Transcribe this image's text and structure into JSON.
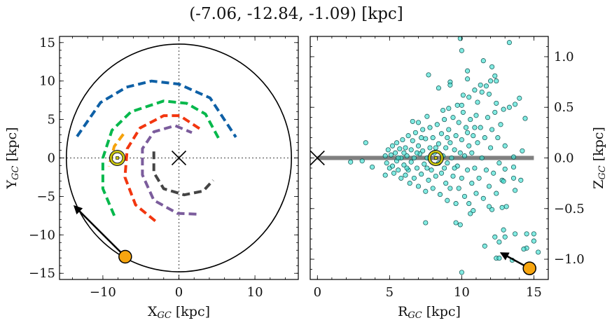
{
  "title": "(-7.06, -12.84, -1.09) [kpc]",
  "colors": {
    "arm_blue": "#0e60a6",
    "arm_green": "#06b84c",
    "arm_red": "#f2360f",
    "arm_purple": "#7b5c9c",
    "arm_gray": "#444444",
    "arm_orange": "#f5a20c",
    "object": "#f7a50f",
    "sun_ring": "#c9c400",
    "scatter_fill": "#3fe0d2",
    "scatter_edge": "#0b4a48",
    "plane_line": "#808080"
  },
  "chart_data": [
    {
      "type": "line",
      "panel": "left",
      "xlabel": {
        "main": "X",
        "sub": "GC",
        "unit": " [kpc]"
      },
      "ylabel": {
        "main": "Y",
        "sub": "GC",
        "unit": " [kpc]"
      },
      "xlim": [
        -15.7,
        15.7
      ],
      "ylim": [
        -15.8,
        15.8
      ],
      "xticks": [
        -10,
        0,
        10
      ],
      "xtick_labels": [
        "−10",
        "0",
        "10"
      ],
      "yticks": [
        15,
        10,
        5,
        0,
        -5,
        -10,
        -15
      ],
      "ytick_labels": [
        "15",
        "10",
        "5",
        "0",
        "−5",
        "−10",
        "−15"
      ],
      "reference_lines": {
        "x": 0,
        "y": 0,
        "style": "dotted"
      },
      "galactic_center": [
        0,
        0
      ],
      "sun": [
        -8.1,
        0
      ],
      "orbit_circle_radius": 14.8,
      "object_position": [
        -7.06,
        -12.84
      ],
      "object_arrow_to": [
        -13.7,
        -6.3
      ],
      "spiral_arms": [
        {
          "color_key": "arm_blue",
          "points": [
            [
              -13.4,
              2.8
            ],
            [
              -10.3,
              7.2
            ],
            [
              -6.9,
              9.2
            ],
            [
              -3.6,
              10.0
            ],
            [
              0,
              9.6
            ],
            [
              4.1,
              7.8
            ],
            [
              7.5,
              2.7
            ]
          ]
        },
        {
          "color_key": "arm_green",
          "points": [
            [
              -8.5,
              -7.5
            ],
            [
              -10.0,
              -4.0
            ],
            [
              -10.0,
              0
            ],
            [
              -8.8,
              3.6
            ],
            [
              -6.3,
              6.0
            ],
            [
              -2.0,
              7.4
            ],
            [
              1.0,
              7.1
            ],
            [
              3.5,
              5.7
            ],
            [
              5.3,
              2.4
            ]
          ]
        },
        {
          "color_key": "arm_red",
          "points": [
            [
              -3.1,
              -8.2
            ],
            [
              -5.7,
              -6.1
            ],
            [
              -7.1,
              -2.5
            ],
            [
              -6.8,
              1.2
            ],
            [
              -5.1,
              3.9
            ],
            [
              -2.0,
              5.5
            ],
            [
              0.1,
              5.5
            ],
            [
              2.9,
              3.7
            ]
          ]
        },
        {
          "color_key": "arm_purple",
          "points": [
            [
              2.3,
              -7.3
            ],
            [
              -0.2,
              -7.2
            ],
            [
              -3.3,
              -5.5
            ],
            [
              -4.8,
              -2.2
            ],
            [
              -4.8,
              1.2
            ],
            [
              -3.3,
              3.4
            ],
            [
              -0.5,
              4.2
            ],
            [
              1.7,
              3.3
            ]
          ]
        },
        {
          "color_key": "arm_gray",
          "points": [
            [
              -3.3,
              0.85
            ],
            [
              -3.3,
              -1.9
            ],
            [
              -2.0,
              -4.0
            ],
            [
              0.7,
              -4.8
            ],
            [
              3.2,
              -4.3
            ],
            [
              4.5,
              -2.9
            ]
          ]
        },
        {
          "color_key": "arm_orange",
          "points": [
            [
              -7.3,
              3.1
            ],
            [
              -8.5,
              1.5
            ],
            [
              -9.2,
              -1.1
            ]
          ]
        }
      ]
    },
    {
      "type": "scatter",
      "panel": "right",
      "xlabel": {
        "main": "R",
        "sub": "GC",
        "unit": " [kpc]"
      },
      "ylabel": {
        "main": "Z",
        "sub": "GC",
        "unit": " [kpc]"
      },
      "xlim": [
        -0.5,
        16.0
      ],
      "ylim": [
        -1.2,
        1.2
      ],
      "xticks": [
        0,
        5,
        10,
        15
      ],
      "xtick_labels": [
        "0",
        "5",
        "10",
        "15"
      ],
      "yticks": [
        1.0,
        0.5,
        0.0,
        -0.5,
        -1.0
      ],
      "ytick_labels": [
        "1.0",
        "0.5",
        "0.0",
        "−0.5",
        "−1.0"
      ],
      "ylabel_position": "right",
      "galactic_center": [
        0,
        0
      ],
      "sun": [
        8.2,
        0
      ],
      "plane_line": {
        "from": 0,
        "to": 15,
        "z": 0
      },
      "object_position": [
        14.7,
        -1.09
      ],
      "object_arrow_to": [
        12.75,
        -0.94
      ],
      "points": [
        [
          4.7,
          0.02
        ],
        [
          4.8,
          -0.05
        ],
        [
          4.9,
          0.08
        ],
        [
          5.0,
          -0.1
        ],
        [
          5.1,
          0.03
        ],
        [
          5.2,
          0.12
        ],
        [
          5.2,
          -0.08
        ],
        [
          5.3,
          -0.15
        ],
        [
          5.4,
          0.05
        ],
        [
          5.5,
          0.15
        ],
        [
          5.5,
          -0.03
        ],
        [
          5.6,
          -0.12
        ],
        [
          5.7,
          0.09
        ],
        [
          5.8,
          -0.2
        ],
        [
          5.8,
          0.0
        ],
        [
          5.9,
          0.18
        ],
        [
          6.0,
          -0.07
        ],
        [
          6.1,
          0.1
        ],
        [
          6.1,
          -0.17
        ],
        [
          6.2,
          0.02
        ],
        [
          6.3,
          0.22
        ],
        [
          6.3,
          -0.12
        ],
        [
          6.4,
          -0.25
        ],
        [
          6.5,
          0.08
        ],
        [
          6.5,
          -0.04
        ],
        [
          6.6,
          0.17
        ],
        [
          6.7,
          -0.2
        ],
        [
          6.7,
          0.0
        ],
        [
          6.8,
          0.25
        ],
        [
          6.9,
          -0.1
        ],
        [
          7.0,
          0.12
        ],
        [
          7.0,
          -0.28
        ],
        [
          7.1,
          0.04
        ],
        [
          7.2,
          -0.16
        ],
        [
          7.3,
          0.28
        ],
        [
          7.3,
          0.07
        ],
        [
          7.4,
          -0.06
        ],
        [
          7.5,
          -0.33
        ],
        [
          7.5,
          0.19
        ],
        [
          7.6,
          0.0
        ],
        [
          7.7,
          -0.22
        ],
        [
          7.8,
          0.3
        ],
        [
          7.8,
          0.1
        ],
        [
          7.9,
          -0.12
        ],
        [
          8.0,
          -0.3
        ],
        [
          8.0,
          0.2
        ],
        [
          8.1,
          0.05
        ],
        [
          8.2,
          -0.18
        ],
        [
          8.3,
          0.33
        ],
        [
          8.4,
          -0.05
        ],
        [
          8.4,
          0.14
        ],
        [
          8.5,
          -0.36
        ],
        [
          8.6,
          0.24
        ],
        [
          8.6,
          -0.15
        ],
        [
          8.7,
          0.02
        ],
        [
          8.8,
          0.38
        ],
        [
          8.9,
          -0.25
        ],
        [
          8.9,
          0.1
        ],
        [
          9.0,
          -0.42
        ],
        [
          9.0,
          -0.05
        ],
        [
          9.1,
          0.28
        ],
        [
          9.2,
          0.15
        ],
        [
          9.2,
          -0.3
        ],
        [
          9.3,
          0.0
        ],
        [
          9.4,
          0.4
        ],
        [
          9.4,
          -0.18
        ],
        [
          9.5,
          0.08
        ],
        [
          9.6,
          -0.45
        ],
        [
          9.6,
          0.22
        ],
        [
          9.7,
          -0.08
        ],
        [
          9.8,
          0.35
        ],
        [
          9.8,
          -0.3
        ],
        [
          9.9,
          0.05
        ],
        [
          10.0,
          -0.2
        ],
        [
          10.0,
          0.18
        ],
        [
          10.1,
          0.45
        ],
        [
          10.2,
          -0.38
        ],
        [
          10.2,
          0.02
        ],
        [
          10.3,
          0.3
        ],
        [
          10.4,
          -0.12
        ],
        [
          10.5,
          0.12
        ],
        [
          10.5,
          -0.45
        ],
        [
          10.6,
          0.38
        ],
        [
          10.7,
          -0.25
        ],
        [
          10.7,
          0.05
        ],
        [
          10.8,
          0.22
        ],
        [
          10.9,
          -0.1
        ],
        [
          11.0,
          0.42
        ],
        [
          11.0,
          -0.35
        ],
        [
          11.1,
          0.15
        ],
        [
          11.2,
          -0.2
        ],
        [
          11.3,
          0.3
        ],
        [
          11.4,
          0.0
        ],
        [
          11.5,
          -0.4
        ],
        [
          11.6,
          0.2
        ],
        [
          11.7,
          -0.12
        ],
        [
          11.8,
          0.4
        ],
        [
          11.9,
          -0.28
        ],
        [
          12.0,
          0.1
        ],
        [
          12.1,
          0.28
        ],
        [
          12.2,
          -0.15
        ],
        [
          12.3,
          0.45
        ],
        [
          12.4,
          -0.35
        ],
        [
          12.5,
          0.2
        ],
        [
          12.6,
          -0.05
        ],
        [
          12.7,
          0.33
        ],
        [
          12.8,
          -0.22
        ],
        [
          12.9,
          0.48
        ],
        [
          13.0,
          0.12
        ],
        [
          6.0,
          0.05
        ],
        [
          6.9,
          0.05
        ],
        [
          7.6,
          -0.1
        ],
        [
          8.8,
          -0.1
        ],
        [
          9.5,
          -0.1
        ],
        [
          10.4,
          0.25
        ],
        [
          5.6,
          0.0
        ],
        [
          7.2,
          0.2
        ],
        [
          9.0,
          0.2
        ],
        [
          10.9,
          0.3
        ],
        [
          8.2,
          0.1
        ],
        [
          6.2,
          -0.1
        ],
        [
          9.9,
          1.18
        ],
        [
          10.0,
          1.06
        ],
        [
          13.3,
          1.14
        ],
        [
          11.5,
          0.96
        ],
        [
          12.1,
          0.9
        ],
        [
          7.7,
          0.82
        ],
        [
          10.4,
          0.86
        ],
        [
          10.4,
          0.78
        ],
        [
          12.3,
          0.81
        ],
        [
          9.2,
          0.75
        ],
        [
          9.2,
          0.72
        ],
        [
          8.4,
          0.69
        ],
        [
          12.0,
          0.76
        ],
        [
          12.4,
          0.76
        ],
        [
          11.3,
          0.72
        ],
        [
          11.7,
          0.71
        ],
        [
          10.9,
          0.67
        ],
        [
          11.4,
          0.65
        ],
        [
          10.1,
          0.62
        ],
        [
          10.5,
          0.6
        ],
        [
          11.9,
          0.63
        ],
        [
          14.0,
          0.59
        ],
        [
          11.1,
          0.55
        ],
        [
          13.7,
          0.53
        ],
        [
          13.3,
          0.5
        ],
        [
          12.4,
          0.54
        ],
        [
          9.7,
          0.52
        ],
        [
          10.0,
          0.52
        ],
        [
          8.7,
          0.47
        ],
        [
          9.1,
          0.49
        ],
        [
          14.4,
          0.39
        ],
        [
          6.6,
          0.36
        ],
        [
          7.0,
          0.35
        ],
        [
          7.6,
          0.41
        ],
        [
          3.35,
          0.15
        ],
        [
          2.3,
          -0.04
        ],
        [
          3.1,
          -0.03
        ],
        [
          3.8,
          -0.09
        ],
        [
          4.7,
          -0.17
        ],
        [
          14.2,
          0.07
        ],
        [
          13.6,
          0.01
        ],
        [
          13.6,
          -0.09
        ],
        [
          14.1,
          -0.22
        ],
        [
          13.7,
          -0.32
        ],
        [
          13.6,
          -0.2
        ],
        [
          13.0,
          -0.11
        ],
        [
          12.9,
          -0.23
        ],
        [
          7.5,
          -0.64
        ],
        [
          9.6,
          -0.64
        ],
        [
          9.9,
          -0.66
        ],
        [
          10.6,
          -0.55
        ],
        [
          10.8,
          -0.52
        ],
        [
          12.1,
          -0.51
        ],
        [
          12.8,
          -0.49
        ],
        [
          13.1,
          -0.48
        ],
        [
          11.9,
          -0.48
        ],
        [
          12.9,
          -0.71
        ],
        [
          12.3,
          -0.78
        ],
        [
          13.0,
          -0.78
        ],
        [
          12.6,
          -0.83
        ],
        [
          13.7,
          -0.75
        ],
        [
          14.5,
          -0.75
        ],
        [
          15.0,
          -0.75
        ],
        [
          15.0,
          -0.82
        ],
        [
          11.6,
          -0.87
        ],
        [
          14.5,
          -0.89
        ],
        [
          14.3,
          -0.9
        ],
        [
          15.3,
          -0.93
        ],
        [
          12.4,
          -0.99
        ],
        [
          12.6,
          -0.99
        ],
        [
          13.5,
          -1.01
        ],
        [
          10.0,
          -1.13
        ]
      ]
    }
  ]
}
